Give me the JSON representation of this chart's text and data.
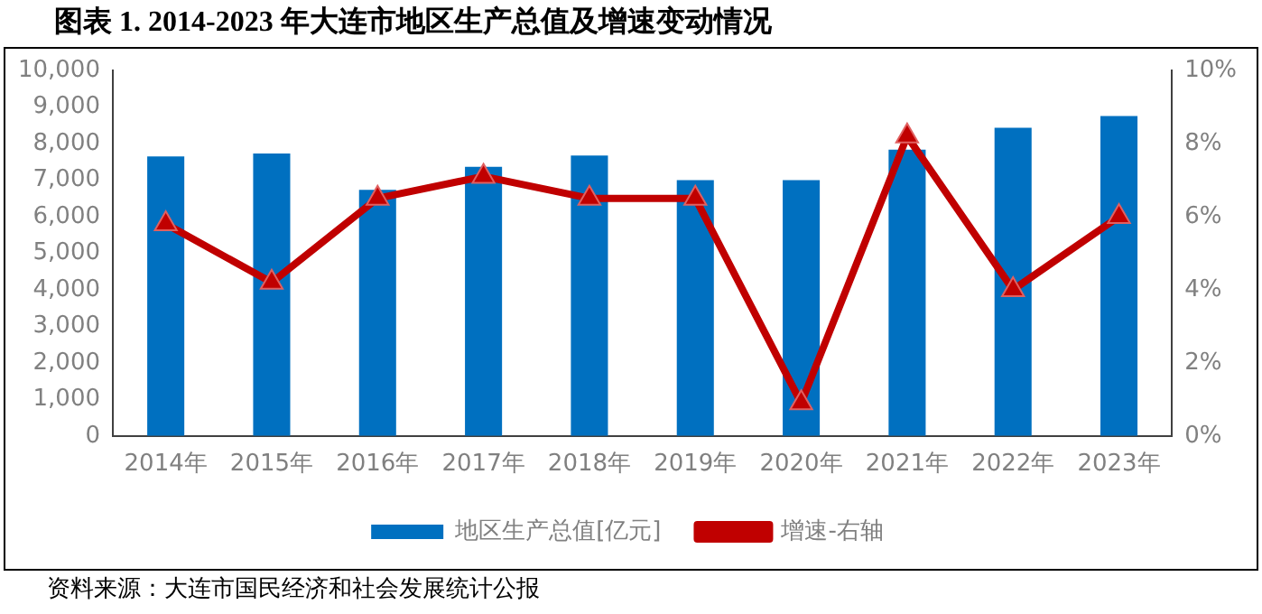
{
  "chart_data": {
    "type": "bar",
    "title": "图表 1.   2014-2023 年大连市地区生产总值及增速变动情况",
    "categories": [
      "2014年",
      "2015年",
      "2016年",
      "2017年",
      "2018年",
      "2019年",
      "2020年",
      "2021年",
      "2022年",
      "2023年"
    ],
    "series": [
      {
        "name": "地区生产总值[亿元]",
        "color": "#0070c0",
        "values": [
          7650,
          7730,
          6730,
          7360,
          7670,
          7000,
          7000,
          7830,
          8430,
          8750
        ]
      },
      {
        "name": "增速-右轴",
        "type": "line",
        "axis": "y2",
        "color": "#c00000",
        "marker": "triangle",
        "values": [
          5.8,
          4.2,
          6.5,
          7.1,
          6.5,
          6.5,
          0.9,
          8.2,
          4.0,
          6.0
        ]
      }
    ],
    "ylim": [
      0,
      10000
    ],
    "yticks": [
      {
        "value": 0,
        "label": "0"
      },
      {
        "value": 1000,
        "label": "1,000"
      },
      {
        "value": 2000,
        "label": "2,000"
      },
      {
        "value": 3000,
        "label": "3,000"
      },
      {
        "value": 4000,
        "label": "4,000"
      },
      {
        "value": 5000,
        "label": "5,000"
      },
      {
        "value": 6000,
        "label": "6,000"
      },
      {
        "value": 7000,
        "label": "7,000"
      },
      {
        "value": 8000,
        "label": "8,000"
      },
      {
        "value": 9000,
        "label": "9,000"
      },
      {
        "value": 10000,
        "label": "10,000"
      }
    ],
    "y2lim": [
      0,
      10
    ],
    "y2ticks": [
      {
        "value": 0,
        "label": "0%"
      },
      {
        "value": 2,
        "label": "2%"
      },
      {
        "value": 4,
        "label": "4%"
      },
      {
        "value": 6,
        "label": "6%"
      },
      {
        "value": 8,
        "label": "8%"
      },
      {
        "value": 10,
        "label": "10%"
      }
    ],
    "grid": false,
    "legend": "bottom",
    "annotations": [
      "资料来源：大连市国民经济和社会发展统计公报"
    ]
  }
}
